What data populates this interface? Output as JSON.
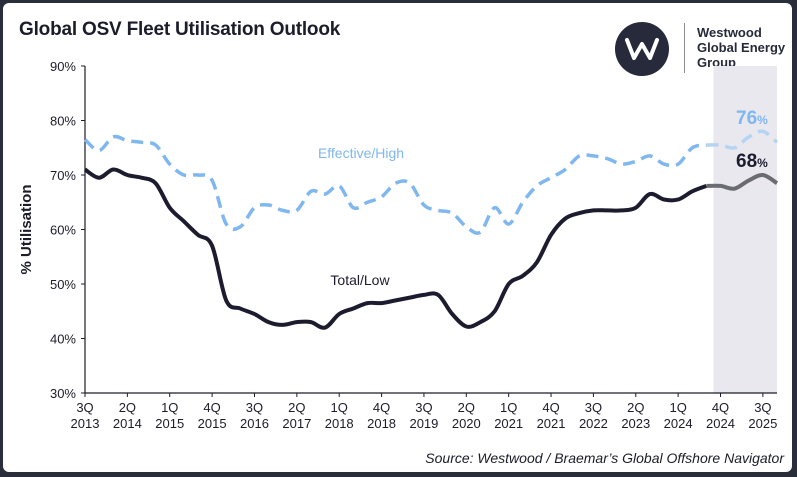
{
  "title": "Global OSV Fleet Utilisation Outlook",
  "logo": {
    "mark": "W",
    "line1": "Westwood",
    "line2": "Global Energy",
    "line3": "Group",
    "icon": "westwood-w-logo-icon"
  },
  "source": "Source: Westwood / Braemar’s Global Offshore Navigator",
  "colors": {
    "high": "#7fb7ee",
    "high_forecast": "#b5d4f4",
    "low": "#1c1c2e",
    "low_forecast": "#6b6b72",
    "forecast_band": "#e8e8ee"
  },
  "chart_data": {
    "type": "line",
    "ylabel": "% Utilisation",
    "xlabel": "",
    "ylim": [
      30,
      90
    ],
    "yticks": [
      "30%",
      "40%",
      "50%",
      "60%",
      "70%",
      "80%",
      "90%"
    ],
    "xlim": [
      0,
      49
    ],
    "xticks": [
      {
        "pos": 0,
        "q": "3Q",
        "y": "2013"
      },
      {
        "pos": 3,
        "q": "2Q",
        "y": "2014"
      },
      {
        "pos": 6,
        "q": "1Q",
        "y": "2015"
      },
      {
        "pos": 9,
        "q": "4Q",
        "y": "2015"
      },
      {
        "pos": 12,
        "q": "3Q",
        "y": "2016"
      },
      {
        "pos": 15,
        "q": "2Q",
        "y": "2017"
      },
      {
        "pos": 18,
        "q": "1Q",
        "y": "2018"
      },
      {
        "pos": 21,
        "q": "4Q",
        "y": "2018"
      },
      {
        "pos": 24,
        "q": "3Q",
        "y": "2019"
      },
      {
        "pos": 27,
        "q": "2Q",
        "y": "2020"
      },
      {
        "pos": 30,
        "q": "1Q",
        "y": "2021"
      },
      {
        "pos": 33,
        "q": "4Q",
        "y": "2021"
      },
      {
        "pos": 36,
        "q": "3Q",
        "y": "2022"
      },
      {
        "pos": 39,
        "q": "2Q",
        "y": "2023"
      },
      {
        "pos": 42,
        "q": "1Q",
        "y": "2024"
      },
      {
        "pos": 45,
        "q": "4Q",
        "y": "2024"
      },
      {
        "pos": 48,
        "q": "3Q",
        "y": "2025"
      }
    ],
    "forecast_start": 44.5,
    "series": [
      {
        "name": "Effective/High",
        "style": "dashed",
        "x": [
          0,
          1,
          2,
          3,
          4,
          5,
          6,
          7,
          8,
          9,
          10,
          11,
          12,
          13,
          14,
          15,
          16,
          17,
          18,
          19,
          20,
          21,
          22,
          23,
          24,
          25,
          26,
          27,
          28,
          29,
          30,
          31,
          32,
          33,
          34,
          35,
          36,
          37,
          38,
          39,
          40,
          41,
          42,
          43,
          44,
          45,
          46,
          47,
          48,
          49
        ],
        "y": [
          76.5,
          74.5,
          77,
          76.3,
          76,
          75.5,
          72,
          70,
          70,
          69,
          61,
          60.5,
          64,
          64.5,
          63.5,
          63.5,
          67,
          66.5,
          68,
          64,
          65,
          66,
          68.5,
          68.5,
          64.5,
          63.5,
          63,
          60.5,
          59.5,
          64,
          61,
          65,
          68,
          69.5,
          71,
          73.5,
          73.5,
          73,
          72,
          72.5,
          73.5,
          72,
          72,
          75,
          75.5,
          75.5,
          75,
          77,
          78,
          76
        ]
      },
      {
        "name": "Total/Low",
        "style": "solid",
        "x": [
          0,
          1,
          2,
          3,
          4,
          5,
          6,
          7,
          8,
          9,
          10,
          11,
          12,
          13,
          14,
          15,
          16,
          17,
          18,
          19,
          20,
          21,
          22,
          23,
          24,
          25,
          26,
          27,
          28,
          29,
          30,
          31,
          32,
          33,
          34,
          35,
          36,
          37,
          38,
          39,
          40,
          41,
          42,
          43,
          44,
          45,
          46,
          47,
          48,
          49
        ],
        "y": [
          71,
          69.5,
          71,
          70,
          69.5,
          68.5,
          64,
          61.5,
          59,
          57,
          47,
          45.5,
          44.5,
          43,
          42.5,
          43,
          43,
          42,
          44.5,
          45.5,
          46.5,
          46.5,
          47,
          47.5,
          48,
          48,
          44.5,
          42.2,
          43,
          45,
          50,
          51.5,
          54,
          59,
          62,
          63,
          63.5,
          63.5,
          63.5,
          64,
          66.5,
          65.5,
          65.5,
          67,
          68,
          68,
          67.5,
          69,
          70,
          68.5
        ]
      }
    ],
    "annotations": [
      {
        "text": "Effective/High",
        "series": 0
      },
      {
        "text": "Total/Low",
        "series": 1
      },
      {
        "value": "76",
        "unit": "%",
        "series": 0
      },
      {
        "value": "68",
        "unit": "%",
        "series": 1
      }
    ],
    "legend": "none",
    "grid": false
  }
}
